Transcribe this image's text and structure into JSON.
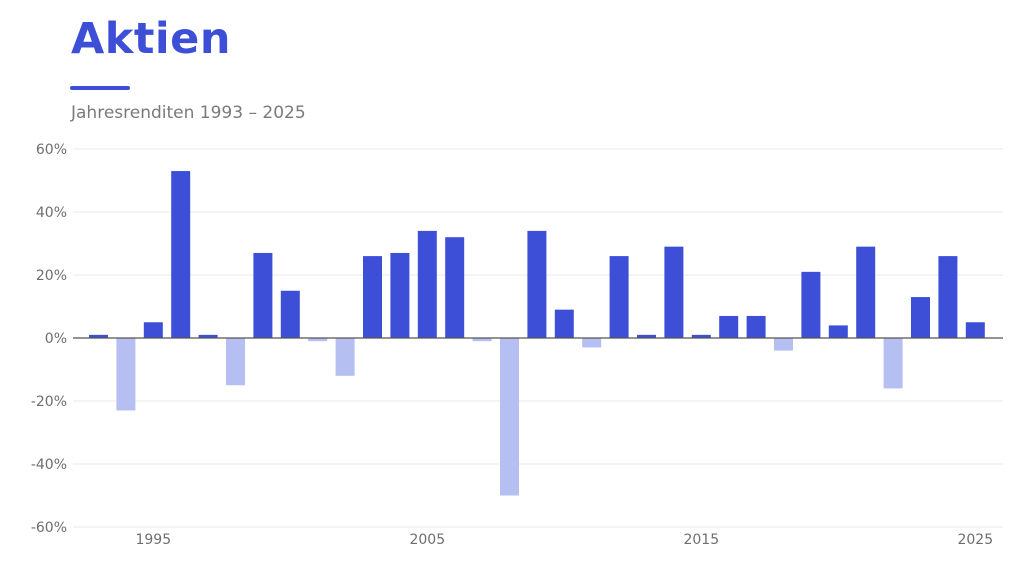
{
  "title": "Aktien",
  "subtitle": "Jahresrenditen 1993 – 2025",
  "colors": {
    "accent": "#3d4fd6",
    "positive": "#3d4fd6",
    "negative": "#b6bff2"
  },
  "chart_data": {
    "type": "bar",
    "title": "Aktien",
    "subtitle": "Jahresrenditen 1993 – 2025",
    "xlabel": "",
    "ylabel": "",
    "x": [
      1993,
      1994,
      1995,
      1996,
      1997,
      1998,
      1999,
      2000,
      2001,
      2002,
      2003,
      2004,
      2005,
      2006,
      2007,
      2008,
      2009,
      2010,
      2011,
      2012,
      2013,
      2014,
      2015,
      2016,
      2017,
      2018,
      2019,
      2020,
      2021,
      2022,
      2023,
      2024,
      2025
    ],
    "values": [
      1,
      -23,
      5,
      53,
      1,
      -15,
      27,
      15,
      -1,
      -12,
      26,
      27,
      34,
      32,
      -1,
      -50,
      34,
      9,
      -3,
      26,
      1,
      29,
      1,
      7,
      7,
      -4,
      21,
      4,
      29,
      -16,
      13,
      26,
      5
    ],
    "ylim": [
      -60,
      60
    ],
    "yticks": [
      60,
      40,
      20,
      0,
      -20,
      -40,
      -60
    ],
    "ytick_labels": [
      "60%",
      "40%",
      "20%",
      "0%",
      "-20%",
      "-40%",
      "-60%"
    ],
    "xticks": [
      1995,
      2005,
      2015,
      2025
    ],
    "xtick_labels": [
      "1995",
      "2005",
      "2015",
      "2025"
    ],
    "grid": true,
    "legend": "none"
  }
}
